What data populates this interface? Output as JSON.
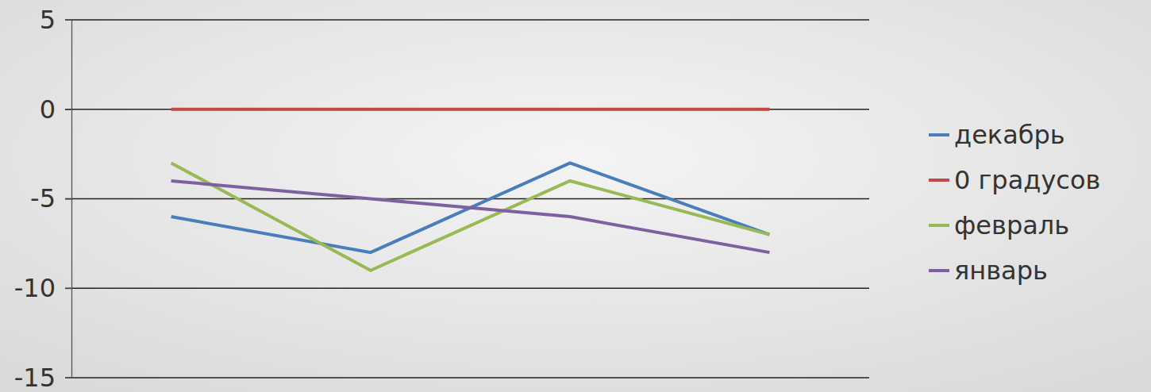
{
  "chart_data": {
    "type": "line",
    "categories": [
      null,
      null,
      null,
      null
    ],
    "series": [
      {
        "name": "декабрь",
        "color": "#4a7ebb",
        "values": [
          -6,
          -8,
          -3,
          -7
        ]
      },
      {
        "name": "0 градусов",
        "color": "#be4b48",
        "values": [
          0,
          0,
          0,
          0
        ]
      },
      {
        "name": "февраль",
        "color": "#98b954",
        "values": [
          -3,
          -9,
          -4,
          -7
        ]
      },
      {
        "name": "январь",
        "color": "#7d60a0",
        "values": [
          -4,
          -5,
          -6,
          -8
        ]
      }
    ],
    "ylim": [
      -15,
      5
    ],
    "yticks": [
      -15,
      -10,
      -5,
      0,
      5
    ],
    "grid": true,
    "legend": "right",
    "tick_labels": "y"
  }
}
